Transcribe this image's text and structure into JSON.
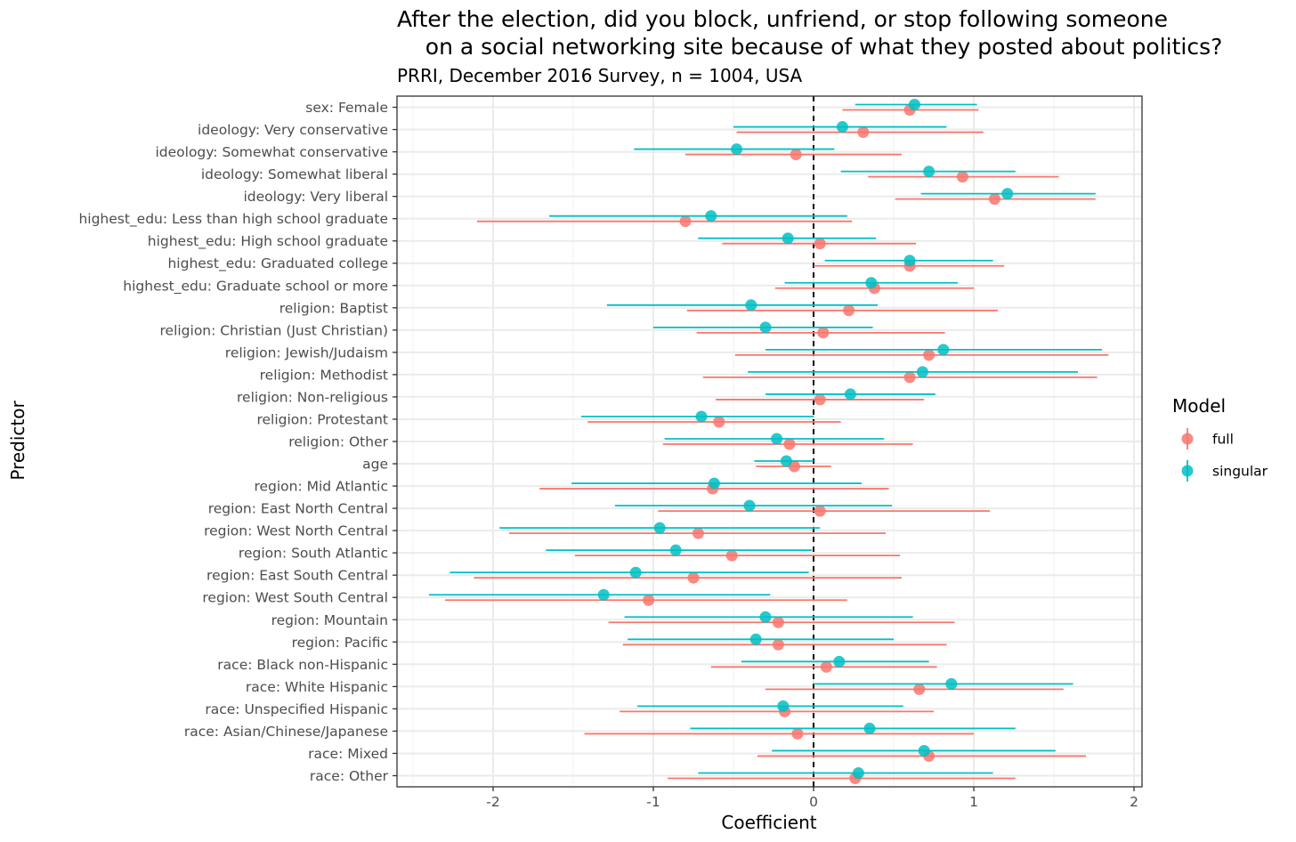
{
  "chart_data": {
    "type": "scatter",
    "title": "After the election, did you block, unfriend, or stop following someone\n    on a social networking site because of what they posted about politics?",
    "subtitle": "PRRI, December 2016 Survey, n = 1004, USA",
    "xlabel": "Coefficient",
    "ylabel": "Predictor",
    "xlim": [
      -2.6,
      2.05
    ],
    "x_ticks": [
      -2,
      -1,
      0,
      1,
      2
    ],
    "x_tick_labels": [
      "-2",
      "-1",
      "0",
      "1",
      "2"
    ],
    "grid": true,
    "reference_line": 0,
    "legend": {
      "title": "Model",
      "position": "right",
      "entries": [
        {
          "label": "full",
          "color": "#F8766D"
        },
        {
          "label": "singular",
          "color": "#00BFC4"
        }
      ]
    },
    "categories": [
      "sex: Female",
      "ideology: Very conservative",
      "ideology: Somewhat conservative",
      "ideology: Somewhat liberal",
      "ideology: Very liberal",
      "highest_edu: Less than high school graduate",
      "highest_edu: High school graduate",
      "highest_edu: Graduated college",
      "highest_edu: Graduate school or more",
      "religion: Baptist",
      "religion: Christian (Just Christian)",
      "religion: Jewish/Judaism",
      "religion: Methodist",
      "religion: Non-religious",
      "religion: Protestant",
      "religion: Other",
      "age",
      "region: Mid Atlantic",
      "region: East North Central",
      "region: West North Central",
      "region: South Atlantic",
      "region: East South Central",
      "region: West South Central",
      "region: Mountain",
      "region: Pacific",
      "race: Black non-Hispanic",
      "race: White Hispanic",
      "race: Unspecified Hispanic",
      "race: Asian/Chinese/Japanese",
      "race: Mixed",
      "race: Other"
    ],
    "series": [
      {
        "name": "full",
        "color": "#F8766D",
        "estimate": [
          0.6,
          0.31,
          -0.11,
          0.93,
          1.13,
          -0.8,
          0.04,
          0.6,
          0.38,
          0.22,
          0.06,
          0.72,
          0.6,
          0.04,
          -0.59,
          -0.15,
          -0.12,
          -0.63,
          0.04,
          -0.72,
          -0.51,
          -0.75,
          -1.03,
          -0.22,
          -0.22,
          0.08,
          0.66,
          -0.18,
          -0.1,
          0.72,
          0.26
        ],
        "low": [
          0.18,
          -0.48,
          -0.8,
          0.34,
          0.51,
          -2.1,
          -0.57,
          0.0,
          -0.24,
          -0.79,
          -0.73,
          -0.49,
          -0.69,
          -0.61,
          -1.41,
          -0.94,
          -0.36,
          -1.71,
          -0.97,
          -1.9,
          -1.49,
          -2.12,
          -2.3,
          -1.28,
          -1.19,
          -0.64,
          -0.3,
          -1.21,
          -1.43,
          -0.35,
          -0.91
        ],
        "high": [
          1.03,
          1.06,
          0.55,
          1.53,
          1.76,
          0.24,
          0.64,
          1.19,
          1.0,
          1.15,
          0.82,
          1.84,
          1.77,
          0.69,
          0.17,
          0.62,
          0.11,
          0.47,
          1.1,
          0.45,
          0.54,
          0.55,
          0.21,
          0.88,
          0.83,
          0.77,
          1.56,
          0.75,
          1.0,
          1.7,
          1.26
        ]
      },
      {
        "name": "singular",
        "color": "#00BFC4",
        "estimate": [
          0.63,
          0.18,
          -0.48,
          0.72,
          1.21,
          -0.64,
          -0.16,
          0.6,
          0.36,
          -0.39,
          -0.3,
          0.81,
          0.68,
          0.23,
          -0.7,
          -0.23,
          -0.17,
          -0.62,
          -0.4,
          -0.96,
          -0.86,
          -1.11,
          -1.31,
          -0.3,
          -0.36,
          0.16,
          0.86,
          -0.19,
          0.35,
          0.69,
          0.28
        ],
        "low": [
          0.26,
          -0.5,
          -1.12,
          0.17,
          0.67,
          -1.65,
          -0.72,
          0.07,
          -0.18,
          -1.29,
          -1.0,
          -0.3,
          -0.41,
          -0.3,
          -1.45,
          -0.93,
          -0.37,
          -1.51,
          -1.24,
          -1.96,
          -1.67,
          -2.27,
          -2.4,
          -1.18,
          -1.16,
          -0.45,
          0.0,
          -1.1,
          -0.77,
          -0.26,
          -0.72
        ],
        "high": [
          1.02,
          0.83,
          0.13,
          1.26,
          1.76,
          0.21,
          0.39,
          1.12,
          0.9,
          0.4,
          0.37,
          1.8,
          1.65,
          0.76,
          0.0,
          0.44,
          0.0,
          0.3,
          0.49,
          0.04,
          -0.01,
          -0.03,
          -0.27,
          0.62,
          0.5,
          0.72,
          1.62,
          0.56,
          1.26,
          1.51,
          1.12
        ]
      }
    ]
  }
}
